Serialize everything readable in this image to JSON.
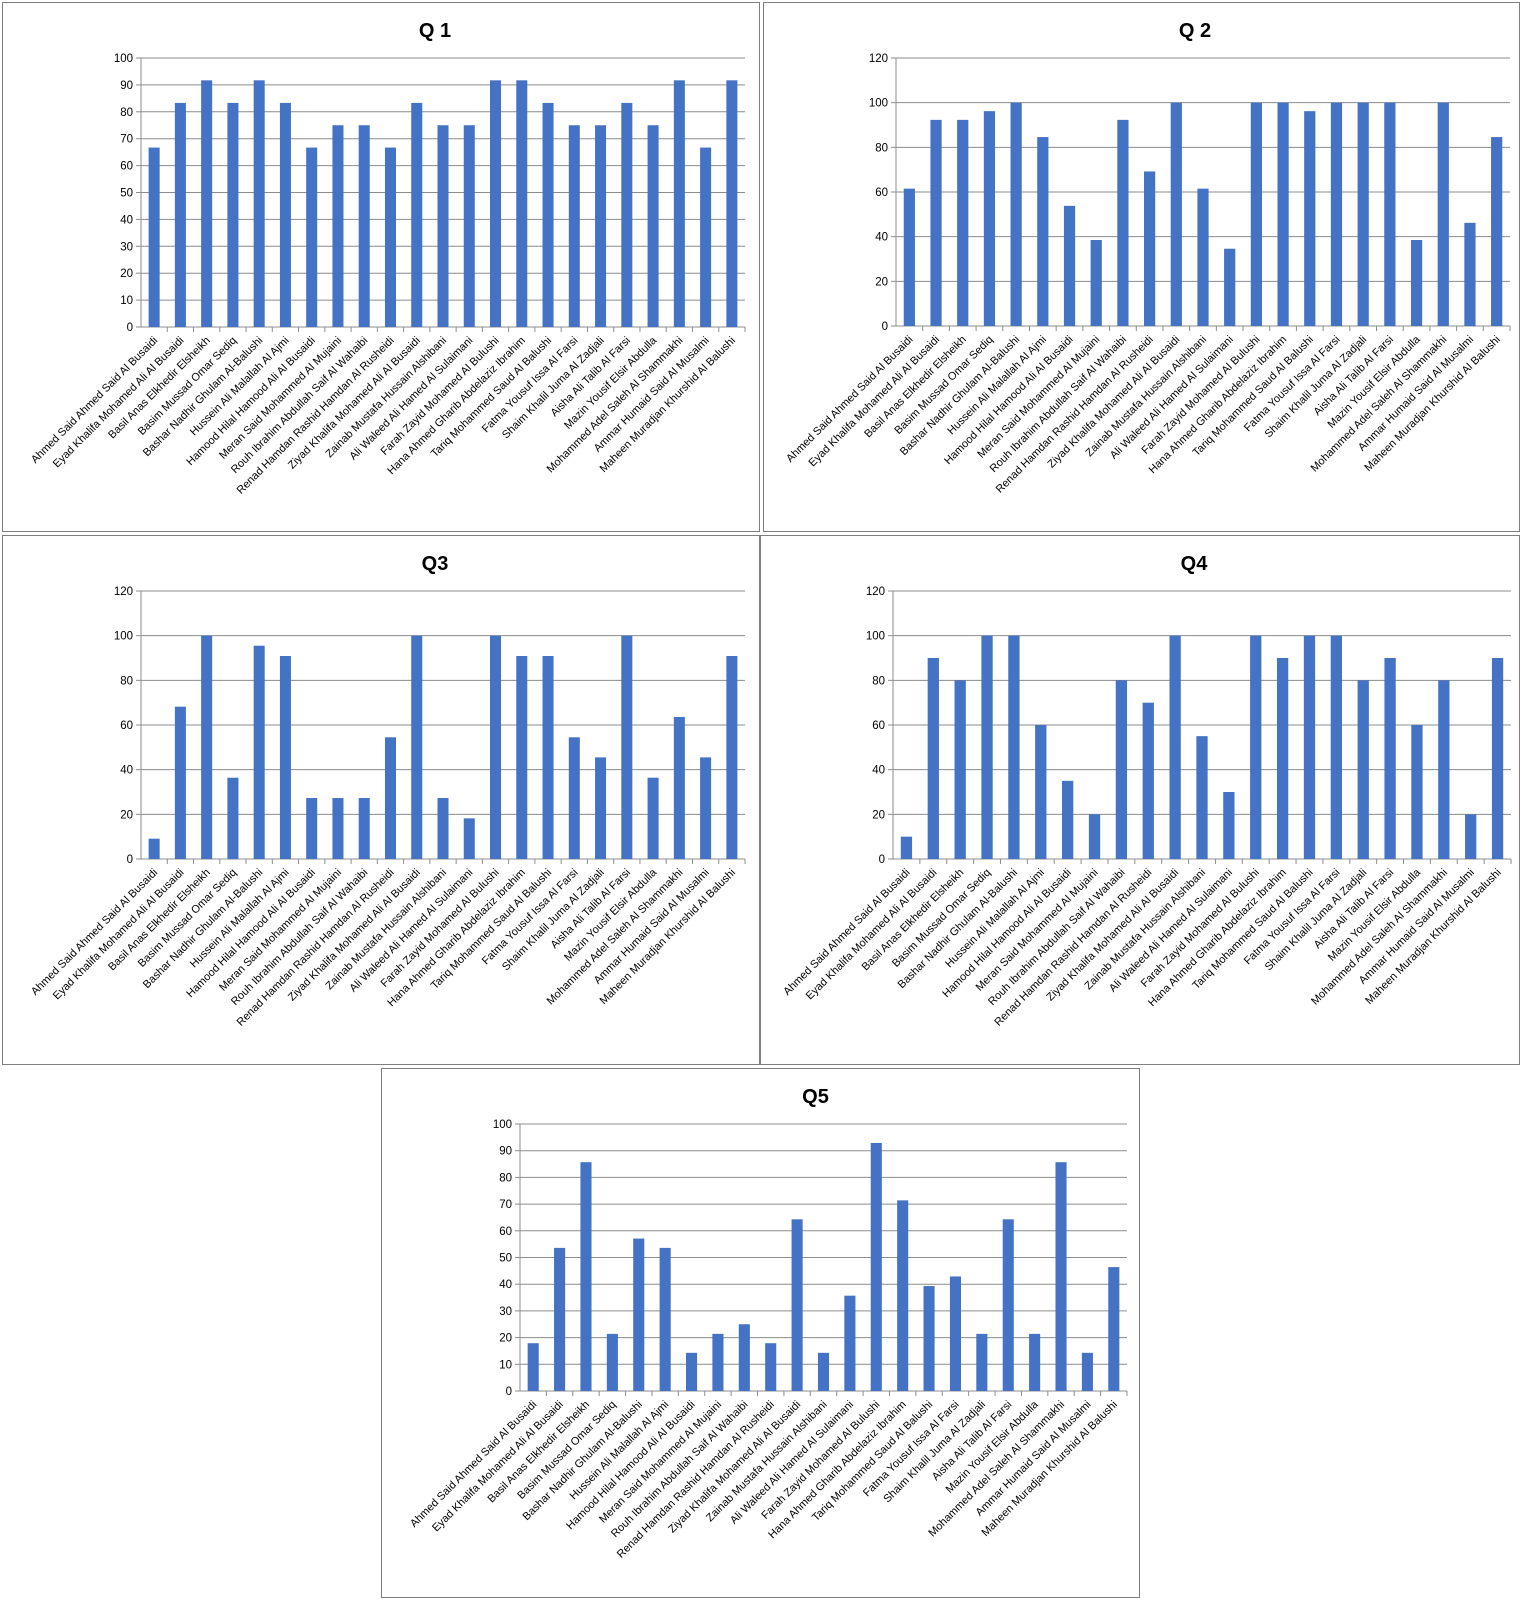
{
  "categories": [
    "Ahmed Said Ahmed  Said Al Busaidi",
    "Eyad Khalifa Mohamed Ali Al Busaidi",
    "Basil Anas Elkhedir Elsheikh",
    "Basim Mussad Omar Sediq",
    "Bashar Nadhir Ghulam Al-Balushi",
    "Hussein Ali Malallah Al Ajmi",
    "Hamood Hilal Hamood Ali  Al Busaidi",
    "Meran Said Mohammed Al Mujaini",
    "Rouh Ibrahim Abdullah Saif Al Wahaibi",
    "Renad Hamdan Rashid Hamdan Al Rusheidi",
    "Ziyad Khalifa Mohamed Ali Al Busaidi",
    "Zainab Mustafa Hussain Alshibani",
    "Ali Waleed Ali Hamed  Al Sulaimani",
    "Farah Zayid Mohamed Al Bulushi",
    "Hana Ahmed Gharib Abdelaziz Ibrahim",
    "Tariq Mohammed Saud Al Balushi",
    "Fatma Yousuf Issa Al Farsi",
    "Shaim  Khalil Juma Al Zadjali",
    "Aisha Ali Talib Al Farsi",
    "Mazin Yousif Elsir Abdulla",
    "Mohammed Adel Saleh Al Shammakhi",
    "Ammar Humaid Said Al Musalmi",
    "Maheen Muradjan Khurshid  Al Balushi"
  ],
  "bar_color": "#4472C4",
  "chart_data": [
    {
      "type": "bar",
      "title": "Q 1",
      "ylim": [
        0,
        100
      ],
      "ytick_step": 10,
      "grid": true,
      "values": [
        66.7,
        83.3,
        91.7,
        83.3,
        91.7,
        83.3,
        66.7,
        75,
        75,
        66.7,
        83.3,
        75,
        75,
        91.7,
        91.7,
        83.3,
        75,
        75,
        83.3,
        75,
        91.7,
        66.7,
        91.7
      ]
    },
    {
      "type": "bar",
      "title": "Q 2",
      "ylim": [
        0,
        120
      ],
      "ytick_step": 20,
      "grid": true,
      "values": [
        61.5,
        92.3,
        92.3,
        96.2,
        100,
        84.6,
        53.8,
        38.5,
        92.3,
        69.2,
        100,
        61.5,
        34.6,
        100,
        100,
        96.2,
        100,
        100,
        100,
        38.5,
        100,
        46.2,
        84.6
      ]
    },
    {
      "type": "bar",
      "title": "Q3",
      "ylim": [
        0,
        120
      ],
      "ytick_step": 20,
      "grid": true,
      "values": [
        9.1,
        68.2,
        100,
        36.4,
        95.5,
        90.9,
        27.3,
        27.3,
        27.3,
        54.5,
        100,
        27.3,
        18.2,
        100,
        90.9,
        90.9,
        54.5,
        45.5,
        100,
        36.4,
        63.6,
        45.5,
        90.9
      ]
    },
    {
      "type": "bar",
      "title": "Q4",
      "ylim": [
        0,
        120
      ],
      "ytick_step": 20,
      "grid": true,
      "values": [
        10,
        90,
        80,
        100,
        100,
        60,
        35,
        20,
        80,
        70,
        100,
        55,
        30,
        100,
        90,
        100,
        100,
        80,
        90,
        60,
        80,
        20,
        90
      ]
    },
    {
      "type": "bar",
      "title": "Q5",
      "ylim": [
        0,
        100
      ],
      "ytick_step": 10,
      "grid": true,
      "values": [
        17.9,
        53.6,
        85.7,
        21.4,
        57.1,
        53.6,
        14.3,
        21.4,
        25,
        17.9,
        64.3,
        14.3,
        35.7,
        92.9,
        71.4,
        39.3,
        42.9,
        21.4,
        64.3,
        21.4,
        85.7,
        14.3,
        46.4
      ]
    }
  ]
}
